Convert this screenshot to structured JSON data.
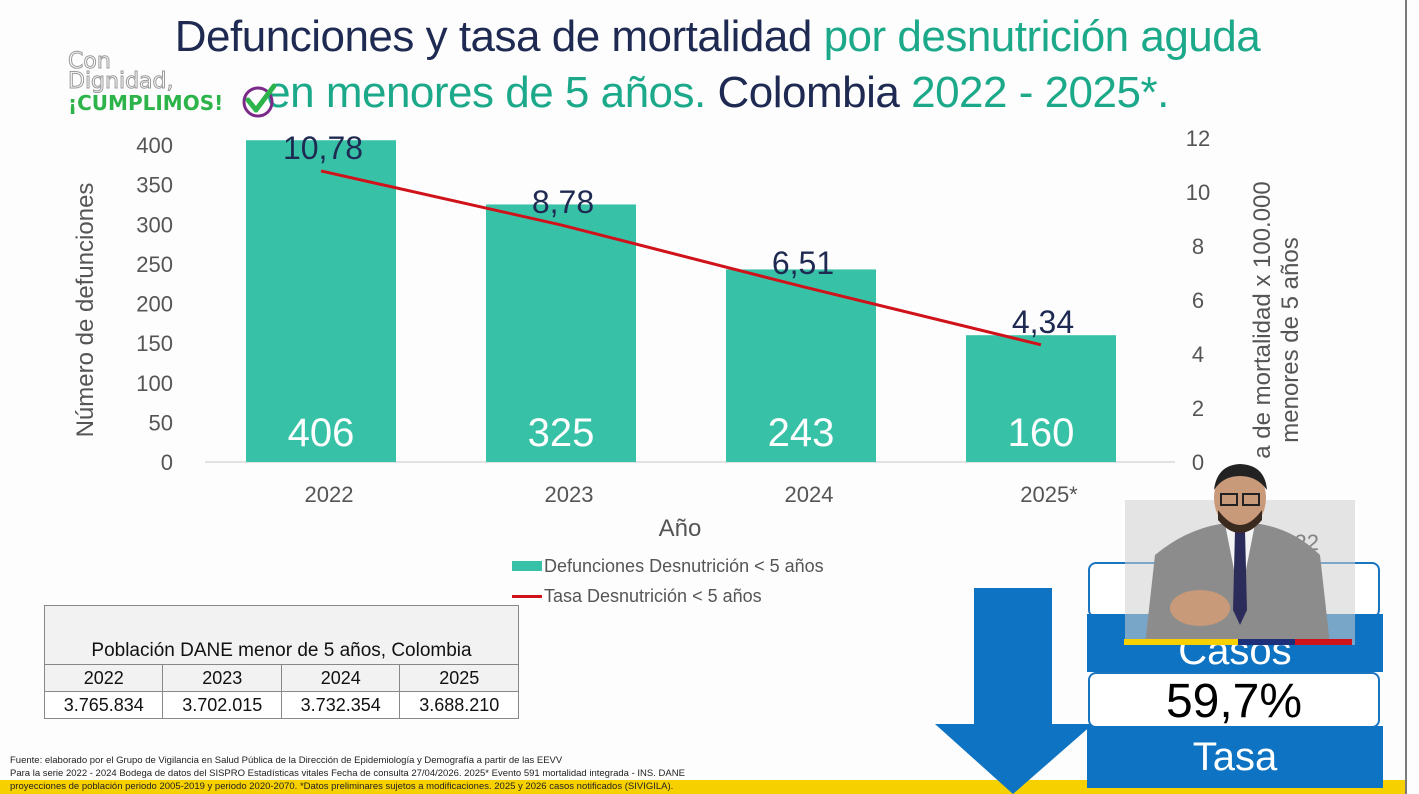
{
  "title": {
    "line1_navy": "Defunciones y tasa de mortalidad",
    "line1_teal": "por desnutrición aguda",
    "line2_teal": "en menores de 5 años.",
    "line2_navy": "Colombia",
    "line2_years": "2022 - 2025*."
  },
  "logo": {
    "line1": "Con",
    "line2": "Dignidad,",
    "line3": "¡CUMPLIMOS!",
    "icon": "check-circle-icon"
  },
  "colors": {
    "bar": "#37c2a8",
    "line": "#d0121b",
    "navy": "#1e2a52",
    "teal": "#1ba98a",
    "panel_blue": "#0d73c2",
    "band_yellow": "#f7d000"
  },
  "chart_data": {
    "type": "bar",
    "title": "Defunciones y tasa de mortalidad por desnutrición aguda en menores de 5 años. Colombia 2022 - 2025*.",
    "categories": [
      "2022",
      "2023",
      "2024",
      "2025*"
    ],
    "series": [
      {
        "name": "Defunciones Desnutrición < 5 años",
        "type": "bar",
        "axis": "left",
        "values": [
          406,
          325,
          243,
          160
        ],
        "labels": [
          "406",
          "325",
          "243",
          "160"
        ]
      },
      {
        "name": "Tasa Desnutrición < 5 años",
        "type": "line",
        "axis": "right",
        "values": [
          10.78,
          8.78,
          6.51,
          4.34
        ],
        "labels": [
          "10,78",
          "8,78",
          "6,51",
          "4,34"
        ]
      }
    ],
    "xlabel": "Año",
    "ylabel": "Número de defunciones",
    "y2label_line1": "Tasa de mortalidad x 100.000",
    "y2label_line2": "menores de 5 años",
    "y2label_visible_line1": "a de mortalidad x 100.000",
    "ylim": [
      0,
      400
    ],
    "y2lim": [
      0,
      12
    ],
    "yticks": [
      "0",
      "50",
      "100",
      "150",
      "200",
      "250",
      "300",
      "350",
      "400"
    ],
    "y2ticks": [
      "0",
      "2",
      "4",
      "6",
      "8",
      "10",
      "12"
    ],
    "grid": false,
    "legend": "bottom-center"
  },
  "population_table": {
    "caption": "Población DANE menor de 5 años, Colombia",
    "headers": [
      "2022",
      "2023",
      "2024",
      "2025"
    ],
    "values": [
      "3.765.834",
      "3.702.015",
      "3.732.354",
      "3.688.210"
    ]
  },
  "footer": {
    "line1": "Fuente:  elaborado por  el Grupo de Vigilancia en Salud Pública de la Dirección de Epidemiología y Demografía a partir de las EEVV",
    "line2": "Para la serie 2022 - 2024  Bodega de datos del SISPRO Estadísticas vitales Fecha de consulta 27/04/2026. 2025* Evento 591 mortalidad integrada - INS. DANE",
    "line3": "proyecciones de población periodo 2005-2019 y periodo 2020-2070. *Datos preliminares sujetos a modificaciones. 2025 y 2026  casos notificados (SIVIGILA)."
  },
  "side_panel": {
    "year_partial": "2022",
    "percent_partial": "%",
    "casos_label": "Casos",
    "casos_value": "59,7%",
    "tasa_label": "Tasa",
    "arrow_icon": "down-arrow-icon"
  }
}
